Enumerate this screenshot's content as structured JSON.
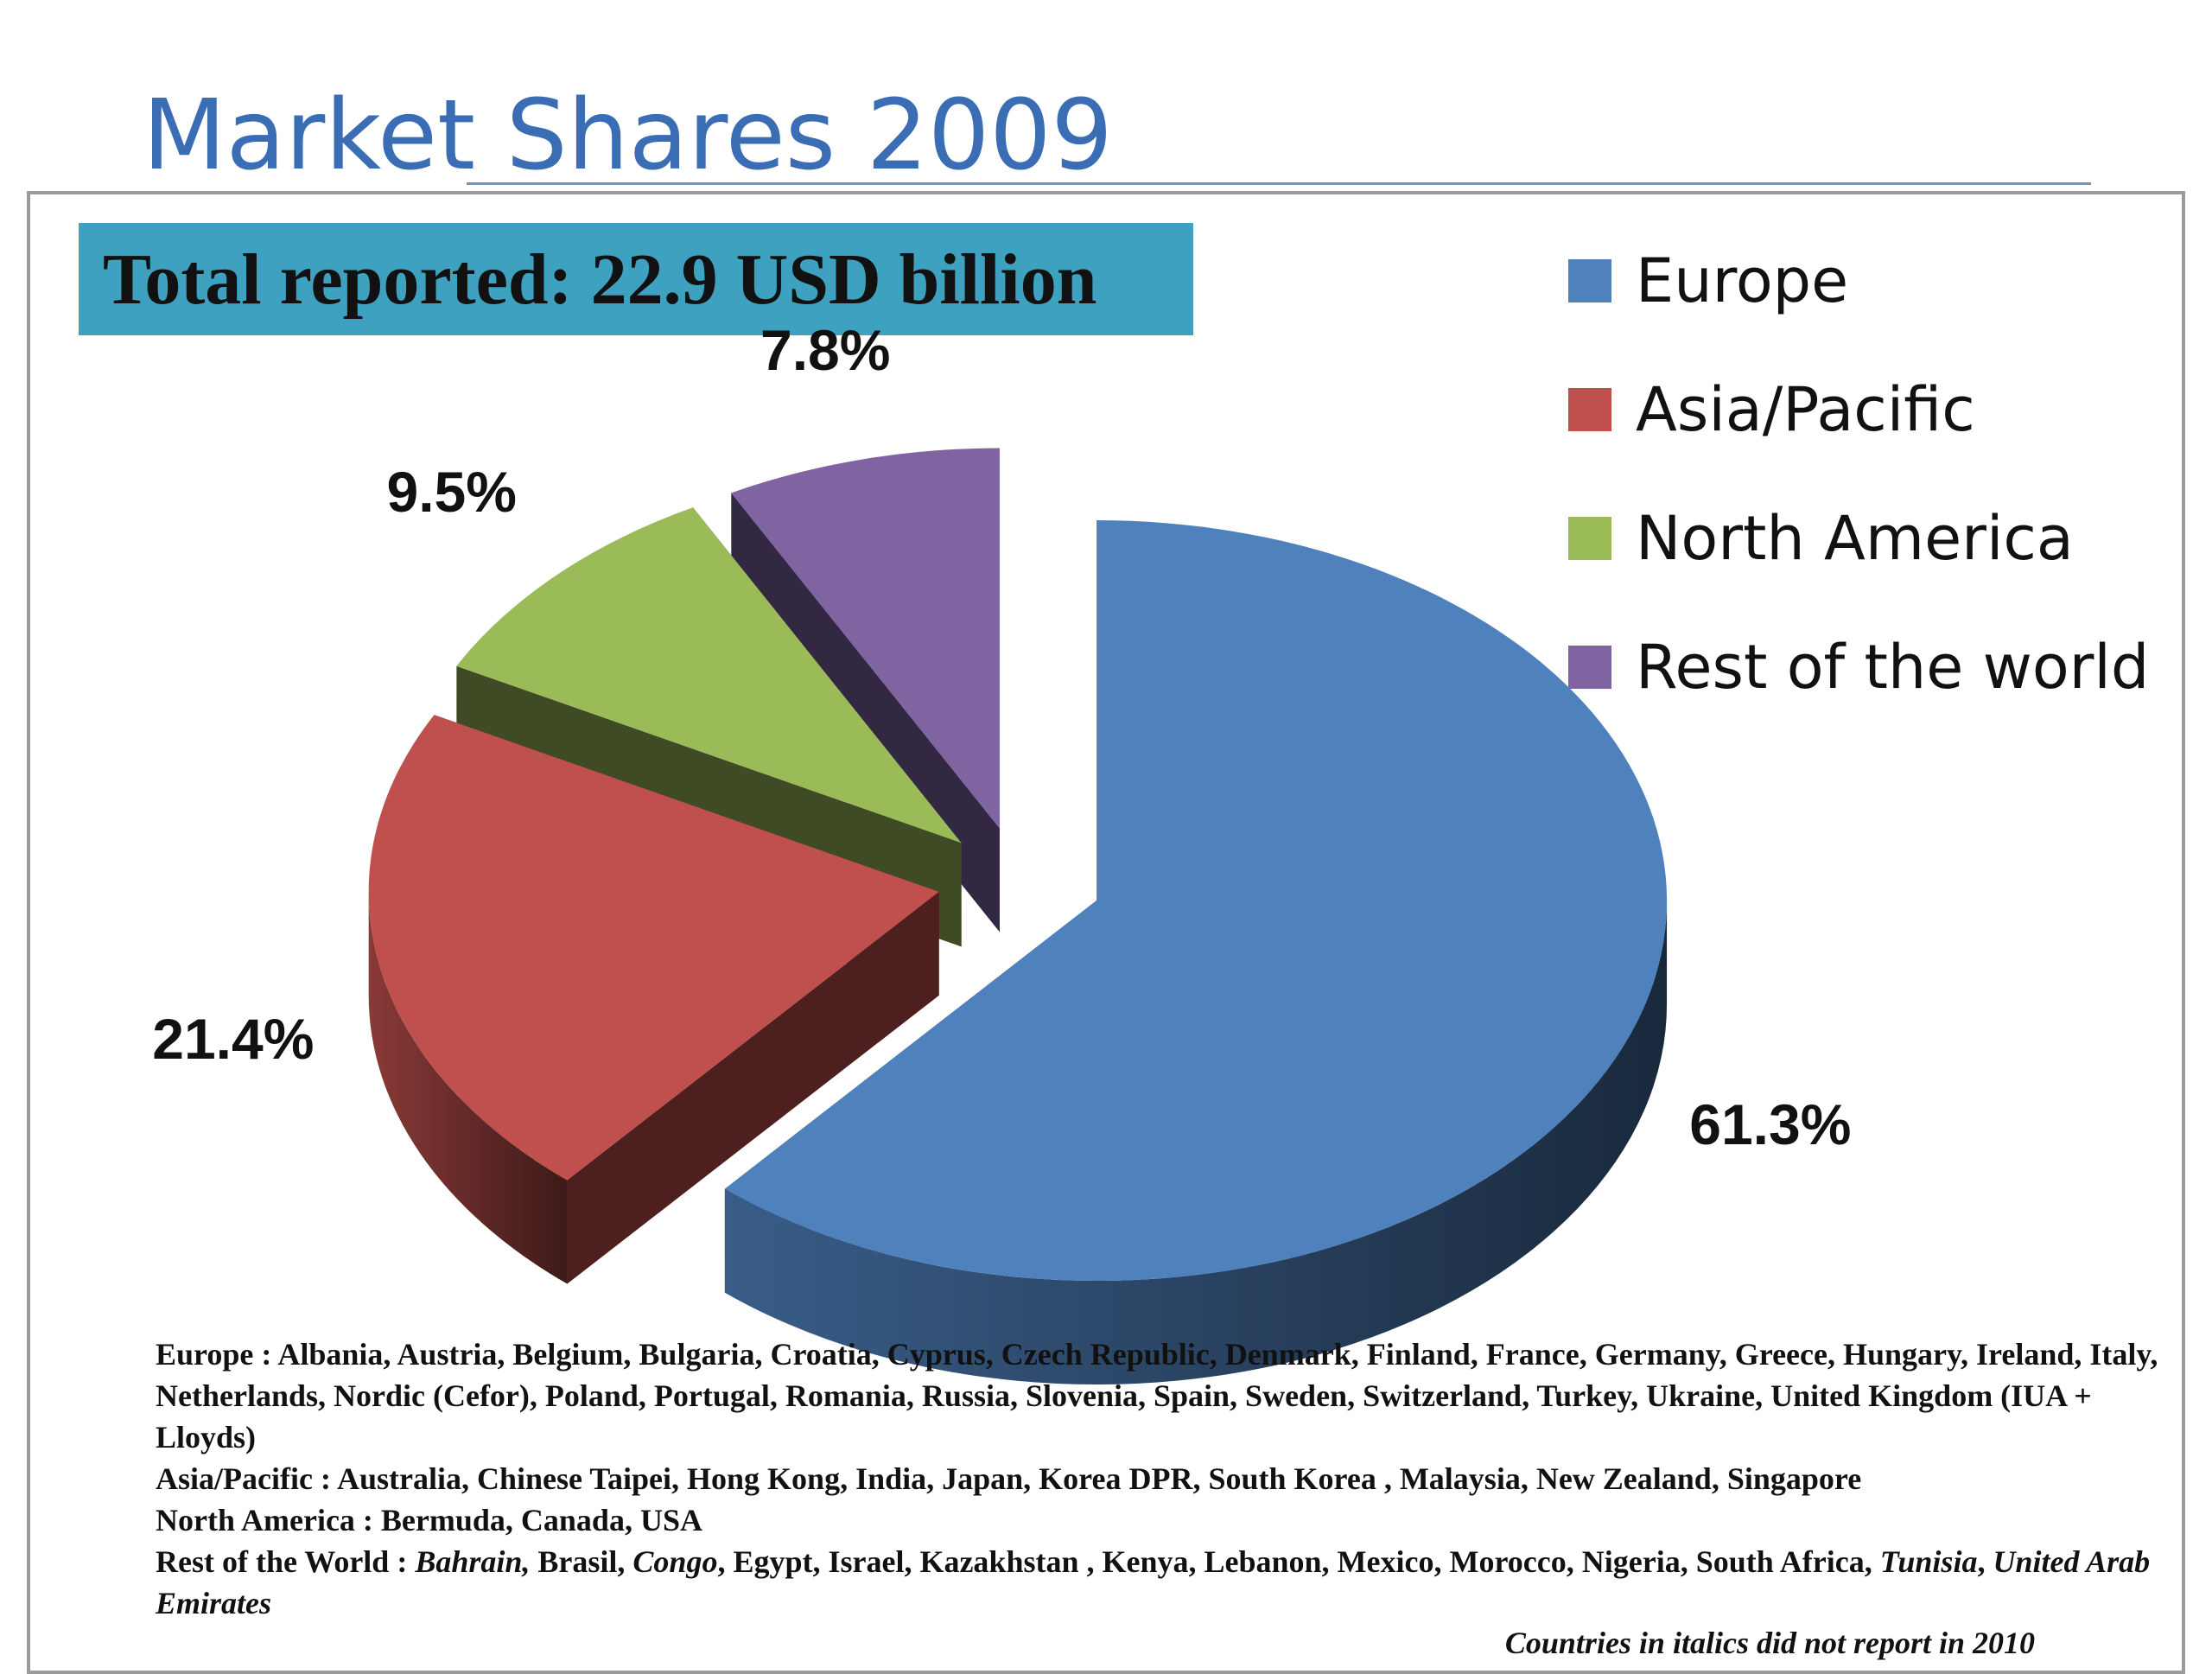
{
  "slide": {
    "title": "Market Shares 2009",
    "total_reported": "Total reported: 22.9 USD billion",
    "footnote": "Countries in italics did not report in 2010"
  },
  "chart_data": {
    "type": "pie",
    "title": "",
    "slices": [
      {
        "name": "Europe",
        "value": 61.3,
        "label": "61.3%",
        "color": "#4f81bd"
      },
      {
        "name": "Asia/Pacific",
        "value": 21.4,
        "label": "21.4%",
        "color": "#c0504d"
      },
      {
        "name": "North America",
        "value": 9.5,
        "label": "9.5%",
        "color": "#9bbb59"
      },
      {
        "name": "Rest of the world",
        "value": 7.8,
        "label": "7.8%",
        "color": "#8064a2"
      }
    ],
    "legend_position": "top-right",
    "style": "3D exploded pie"
  },
  "countries": {
    "europe": [
      {
        "text": "Europe :      Albania, Austria, Belgium, Bulgaria, Croatia, Cyprus, Czech Republic, Denmark, Finland, France, Germany, Greece, Hungary, Ireland, Italy, Netherlands, Nordic (Cefor), Poland, Portugal, Romania, Russia, Slovenia, Spain, Sweden, Switzerland, Turkey, Ukraine, United Kingdom (IUA + Lloyds)",
        "italic": false
      }
    ],
    "asia_pacific": [
      {
        "text": "Asia/Pacific : Australia, Chinese Taipei, Hong Kong, India, Japan, Korea DPR, South Korea , Malaysia, New Zealand, Singapore",
        "italic": false
      }
    ],
    "north_america": [
      {
        "text": "North America : Bermuda, Canada, USA",
        "italic": false
      }
    ],
    "rest_of_world": [
      {
        "text": "Rest of the World : ",
        "italic": false
      },
      {
        "text": "Bahrain,",
        "italic": true
      },
      {
        "text": " Brasil, ",
        "italic": false
      },
      {
        "text": "Congo",
        "italic": true
      },
      {
        "text": ", Egypt, Israel, Kazakhstan , Kenya, Lebanon, Mexico, Morocco,  Nigeria, South Africa, ",
        "italic": false
      },
      {
        "text": "Tunisia",
        "italic": true
      },
      {
        "text": ", ",
        "italic": false
      },
      {
        "text": "United Arab Emirates",
        "italic": true
      }
    ]
  }
}
